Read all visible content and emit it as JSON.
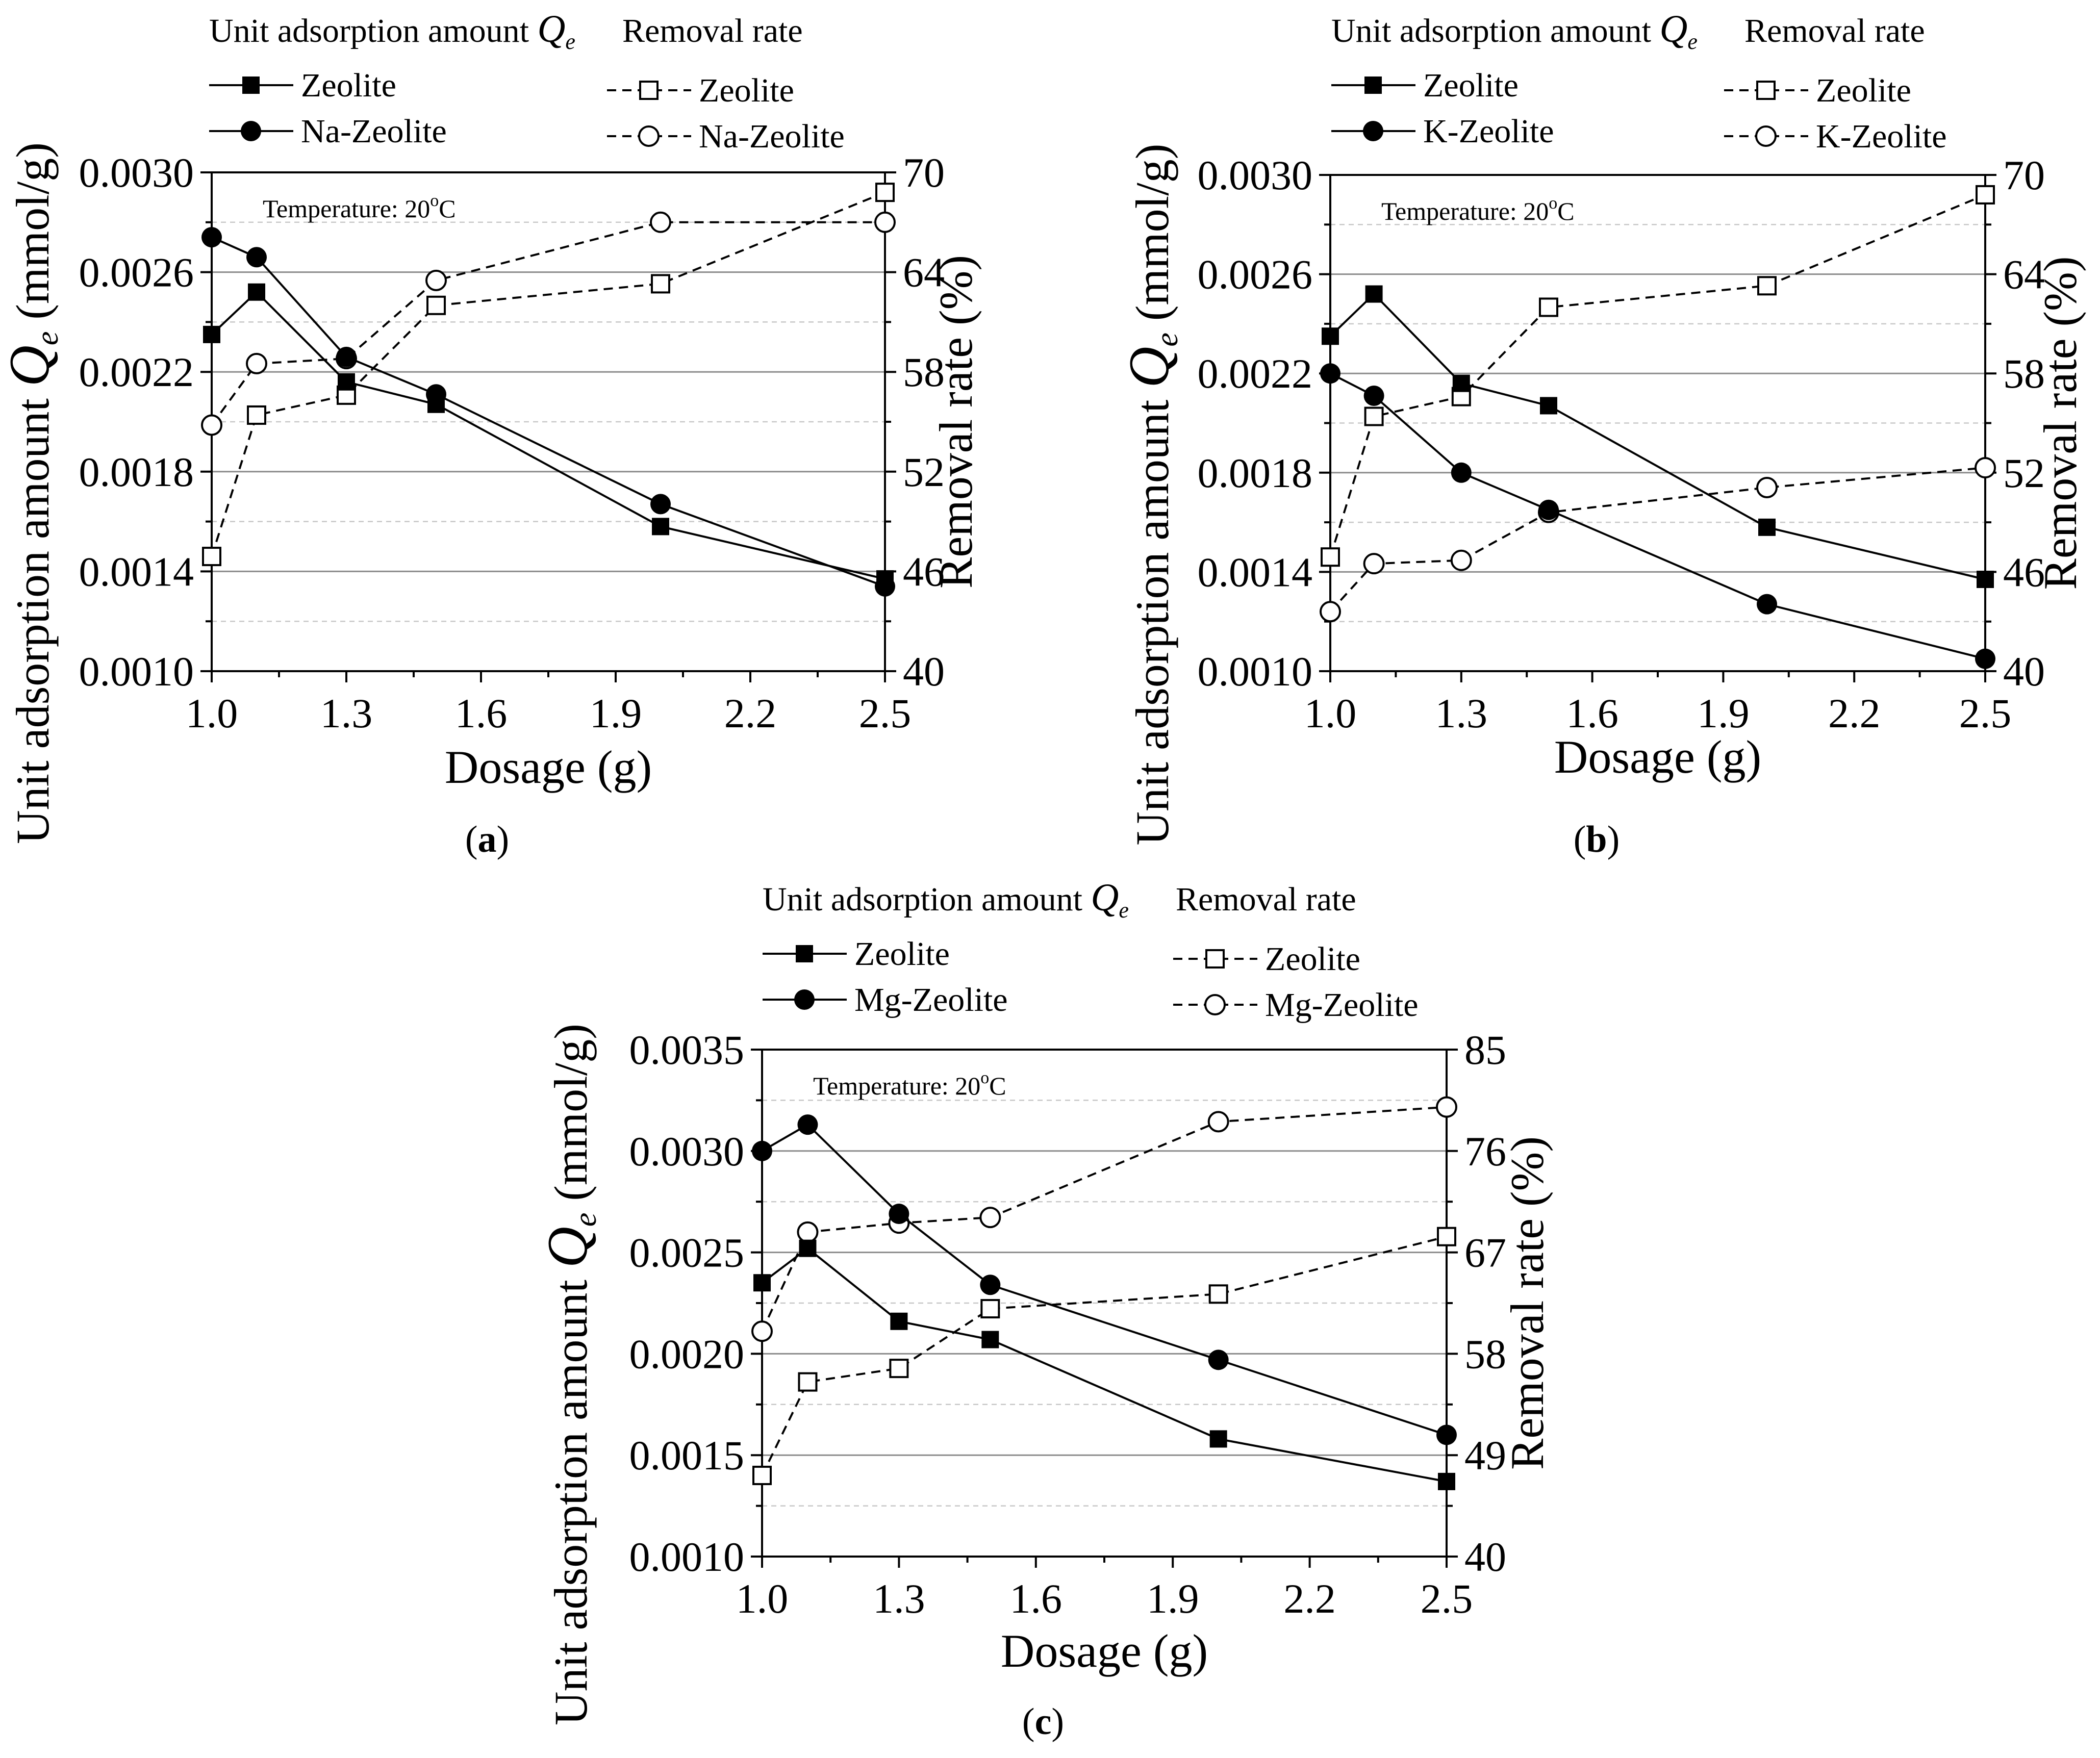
{
  "chart_data": [
    {
      "type": "line",
      "panel_label": "a",
      "xlabel": "Dosage (g)",
      "ylabel": "Unit adsorption amount",
      "ylabel_symbol": "Q",
      "ylabel_sub": "e",
      "ylabel_unit": "(mmol/g)",
      "y2label": "Removal rate (%)",
      "annotation": "Temperature: 20",
      "annotation_sup": "o",
      "annotation_unit": "C",
      "xlim": [
        1.0,
        2.5
      ],
      "ylim": [
        0.001,
        0.003
      ],
      "y2lim": [
        40,
        70
      ],
      "xticks": [
        "1.0",
        "1.3",
        "1.6",
        "1.9",
        "2.2",
        "2.5"
      ],
      "yticks": [
        "0.0010",
        "0.0014",
        "0.0018",
        "0.0022",
        "0.0026",
        "0.0030"
      ],
      "y2ticks": [
        "40",
        "46",
        "52",
        "58",
        "64",
        "70"
      ],
      "legend": {
        "left_header": "Unit adsorption amount",
        "left_header_symbol": "Q",
        "left_header_sub": "e",
        "right_header": "Removal rate",
        "items": [
          "Zeolite",
          "Na-Zeolite",
          "Zeolite",
          "Na-Zeolite"
        ]
      },
      "series": [
        {
          "name": "Zeolite",
          "axis": "left",
          "marker": "square-filled",
          "line": "solid",
          "x": [
            1.0,
            1.1,
            1.3,
            1.5,
            2.0,
            2.5
          ],
          "values": [
            0.00235,
            0.00252,
            0.00216,
            0.00207,
            0.00158,
            0.00137
          ]
        },
        {
          "name": "Na-Zeolite",
          "axis": "left",
          "marker": "circle-filled",
          "line": "solid",
          "x": [
            1.0,
            1.1,
            1.3,
            1.5,
            2.0,
            2.5
          ],
          "values": [
            0.00274,
            0.00266,
            0.00226,
            0.00211,
            0.00167,
            0.00134
          ]
        },
        {
          "name": "Zeolite",
          "axis": "right",
          "marker": "square-open",
          "line": "dashed",
          "x": [
            1.0,
            1.1,
            1.3,
            1.5,
            2.0,
            2.5
          ],
          "values": [
            46.9,
            55.4,
            56.6,
            62.0,
            63.3,
            68.8
          ]
        },
        {
          "name": "Na-Zeolite",
          "axis": "right",
          "marker": "circle-open",
          "line": "dashed",
          "x": [
            1.0,
            1.1,
            1.3,
            1.5,
            2.0,
            2.5
          ],
          "values": [
            54.8,
            58.5,
            58.8,
            63.5,
            67.0,
            67.0
          ]
        }
      ]
    },
    {
      "type": "line",
      "panel_label": "b",
      "xlabel": "Dosage (g)",
      "ylabel": "Unit adsorption amount",
      "ylabel_symbol": "Q",
      "ylabel_sub": "e",
      "ylabel_unit": "(mmol/g)",
      "y2label": "Removal rate (%)",
      "annotation": "Temperature: 20",
      "annotation_sup": "o",
      "annotation_unit": "C",
      "xlim": [
        1.0,
        2.5
      ],
      "ylim": [
        0.001,
        0.003
      ],
      "y2lim": [
        40,
        70
      ],
      "xticks": [
        "1.0",
        "1.3",
        "1.6",
        "1.9",
        "2.2",
        "2.5"
      ],
      "yticks": [
        "0.0010",
        "0.0014",
        "0.0018",
        "0.0022",
        "0.0026",
        "0.0030"
      ],
      "y2ticks": [
        "40",
        "46",
        "52",
        "58",
        "64",
        "70"
      ],
      "legend": {
        "left_header": "Unit adsorption amount",
        "left_header_symbol": "Q",
        "left_header_sub": "e",
        "right_header": "Removal rate",
        "items": [
          "Zeolite",
          "K-Zeolite",
          "Zeolite",
          "K-Zeolite"
        ]
      },
      "series": [
        {
          "name": "Zeolite",
          "axis": "left",
          "marker": "square-filled",
          "line": "solid",
          "x": [
            1.0,
            1.1,
            1.3,
            1.5,
            2.0,
            2.5
          ],
          "values": [
            0.00235,
            0.00252,
            0.00216,
            0.00207,
            0.00158,
            0.00137
          ]
        },
        {
          "name": "K-Zeolite",
          "axis": "left",
          "marker": "circle-filled",
          "line": "solid",
          "x": [
            1.0,
            1.1,
            1.3,
            1.5,
            2.0,
            2.5
          ],
          "values": [
            0.0022,
            0.00211,
            0.0018,
            0.00165,
            0.00127,
            0.00105
          ]
        },
        {
          "name": "Zeolite",
          "axis": "right",
          "marker": "square-open",
          "line": "dashed",
          "x": [
            1.0,
            1.1,
            1.3,
            1.5,
            2.0,
            2.5
          ],
          "values": [
            46.9,
            55.4,
            56.6,
            62.0,
            63.3,
            68.8
          ]
        },
        {
          "name": "K-Zeolite",
          "axis": "right",
          "marker": "circle-open",
          "line": "dashed",
          "x": [
            1.0,
            1.1,
            1.3,
            1.5,
            2.0,
            2.5
          ],
          "values": [
            43.6,
            46.5,
            46.7,
            49.6,
            51.1,
            52.3
          ]
        }
      ]
    },
    {
      "type": "line",
      "panel_label": "c",
      "xlabel": "Dosage (g)",
      "ylabel": "Unit adsorption amount",
      "ylabel_symbol": "Q",
      "ylabel_sub": "e",
      "ylabel_unit": "(mmol/g)",
      "y2label": "Removal rate (%)",
      "annotation": "Temperature: 20",
      "annotation_sup": "o",
      "annotation_unit": "C",
      "xlim": [
        1.0,
        2.5
      ],
      "ylim": [
        0.001,
        0.0035
      ],
      "y2lim": [
        40,
        85
      ],
      "xticks": [
        "1.0",
        "1.3",
        "1.6",
        "1.9",
        "2.2",
        "2.5"
      ],
      "yticks": [
        "0.0010",
        "0.0015",
        "0.0020",
        "0.0025",
        "0.0030",
        "0.0035"
      ],
      "y2ticks": [
        "40",
        "49",
        "58",
        "67",
        "76",
        "85"
      ],
      "legend": {
        "left_header": "Unit adsorption amount",
        "left_header_symbol": "Q",
        "left_header_sub": "e",
        "right_header": "Removal rate",
        "items": [
          "Zeolite",
          "Mg-Zeolite",
          "Zeolite",
          "Mg-Zeolite"
        ]
      },
      "series": [
        {
          "name": "Zeolite",
          "axis": "left",
          "marker": "square-filled",
          "line": "solid",
          "x": [
            1.0,
            1.1,
            1.3,
            1.5,
            2.0,
            2.5
          ],
          "values": [
            0.00235,
            0.00252,
            0.00216,
            0.00207,
            0.00158,
            0.00137
          ]
        },
        {
          "name": "Mg-Zeolite",
          "axis": "left",
          "marker": "circle-filled",
          "line": "solid",
          "x": [
            1.0,
            1.1,
            1.3,
            1.5,
            2.0,
            2.5
          ],
          "values": [
            0.003,
            0.00313,
            0.00269,
            0.00234,
            0.00197,
            0.0016
          ]
        },
        {
          "name": "Zeolite",
          "axis": "right",
          "marker": "square-open",
          "line": "dashed",
          "x": [
            1.0,
            1.1,
            1.3,
            1.5,
            2.0,
            2.5
          ],
          "values": [
            47.2,
            55.5,
            56.7,
            62.0,
            63.3,
            68.4
          ]
        },
        {
          "name": "Mg-Zeolite",
          "axis": "right",
          "marker": "circle-open",
          "line": "dashed",
          "x": [
            1.0,
            1.1,
            1.3,
            1.5,
            2.0,
            2.5
          ],
          "values": [
            60.0,
            68.8,
            69.6,
            70.1,
            78.6,
            79.9
          ]
        }
      ]
    }
  ]
}
